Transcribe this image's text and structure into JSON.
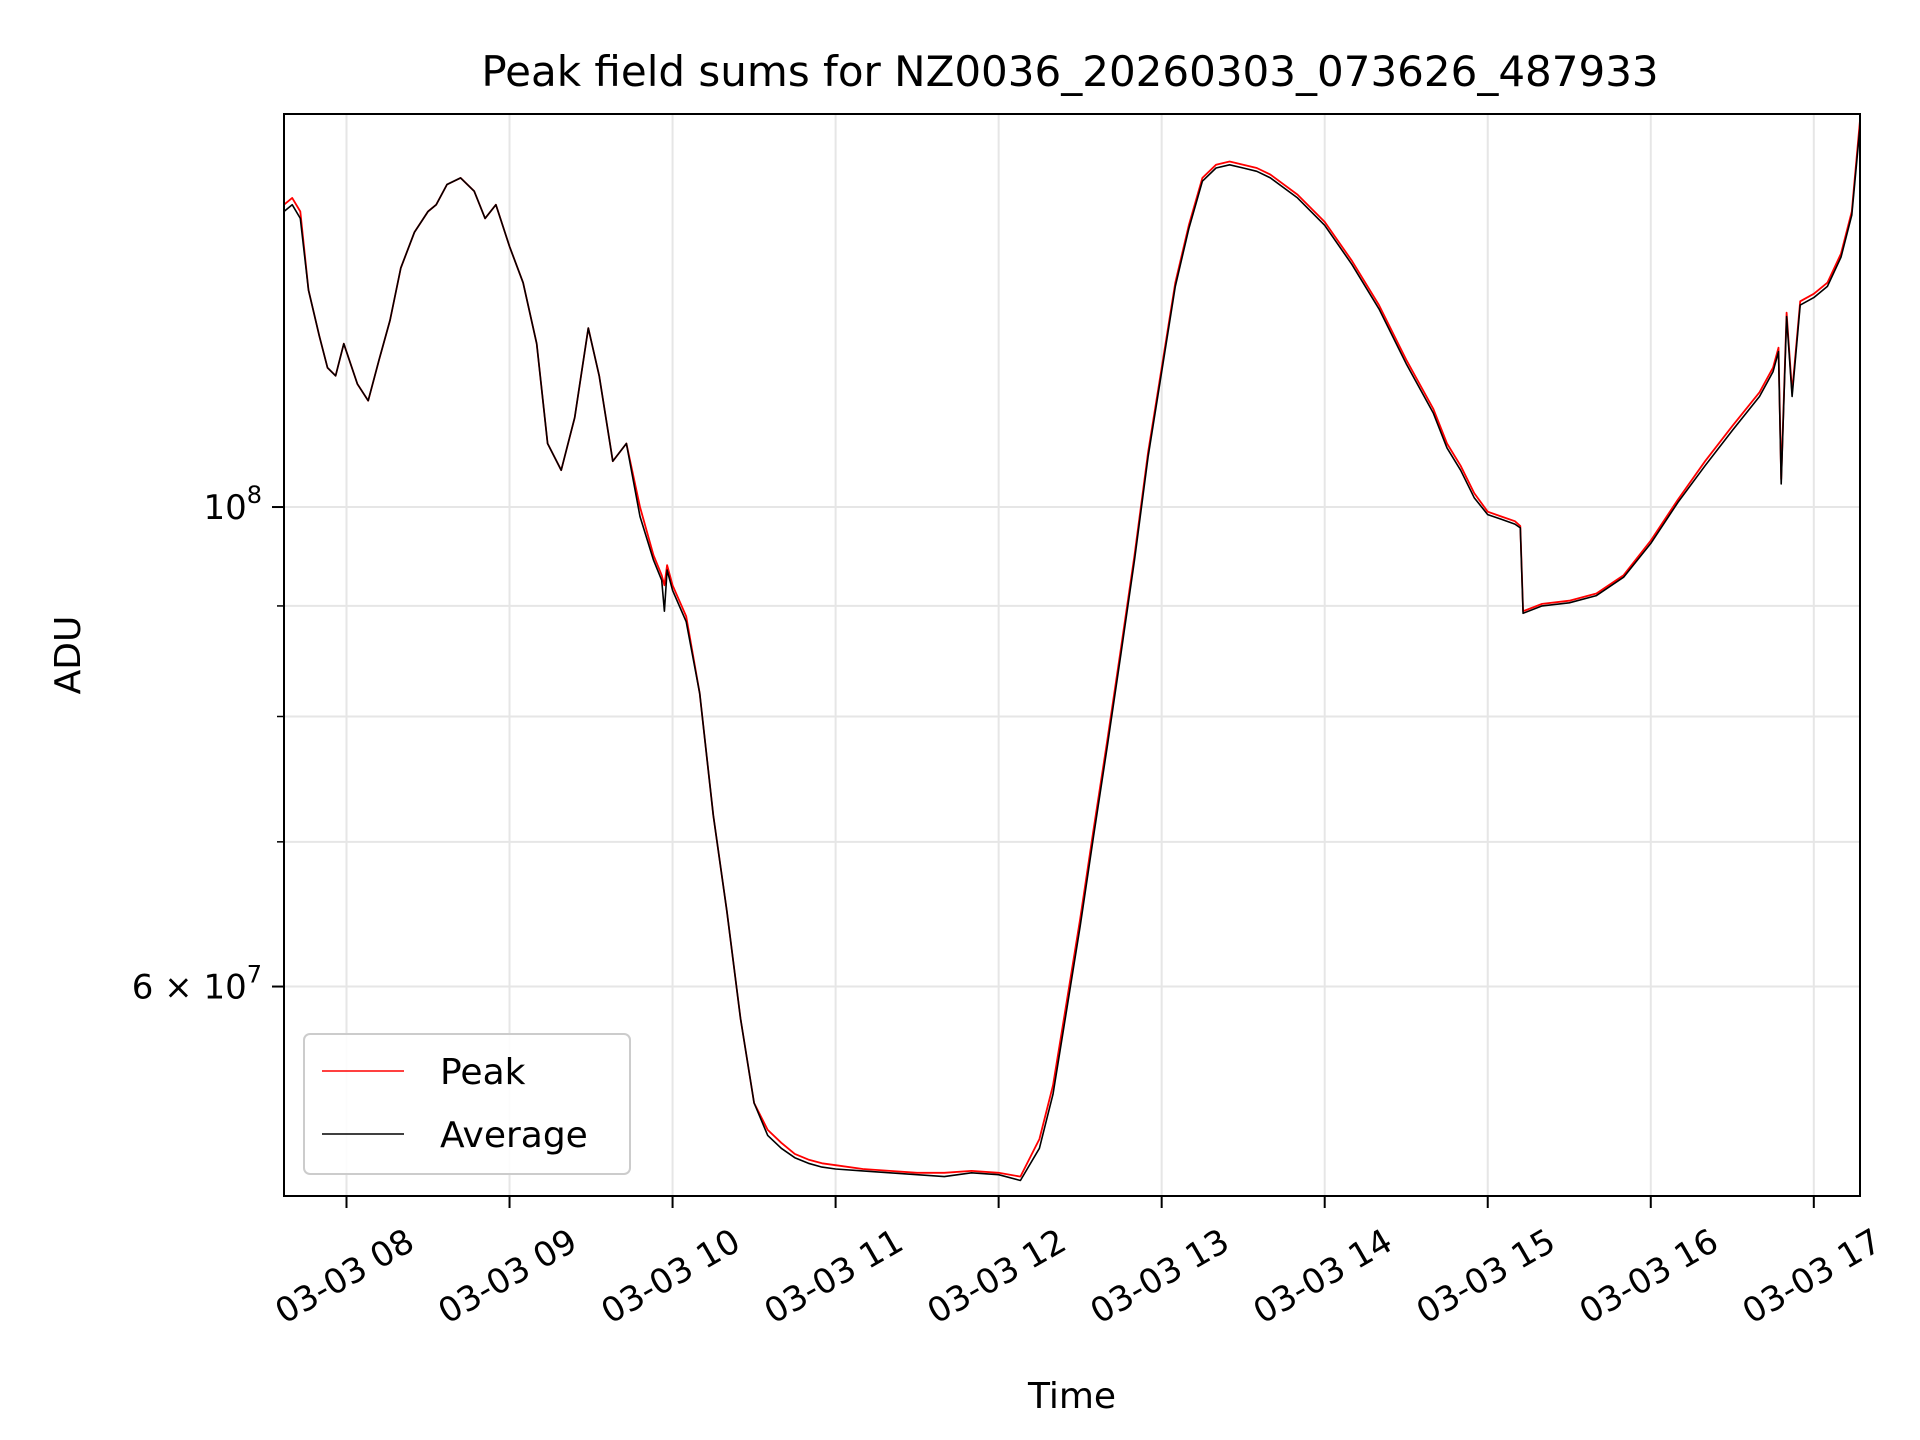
{
  "chart_data": {
    "type": "line",
    "title": "Peak field sums for NZ0036_20260303_073626_487933",
    "xlabel": "Time",
    "ylabel": "ADU",
    "y_scale": "log",
    "xlim": [
      "2026-03-03 07:37",
      "2026-03-03 17:17"
    ],
    "ylim": [
      48000000,
      152000000
    ],
    "x_ticks": [
      "03-03 08",
      "03-03 09",
      "03-03 10",
      "03-03 11",
      "03-03 12",
      "03-03 13",
      "03-03 14",
      "03-03 15",
      "03-03 16",
      "03-03 17"
    ],
    "x_tick_times": [
      "2026-03-03 08:00",
      "2026-03-03 09:00",
      "2026-03-03 10:00",
      "2026-03-03 11:00",
      "2026-03-03 12:00",
      "2026-03-03 13:00",
      "2026-03-03 14:00",
      "2026-03-03 15:00",
      "2026-03-03 16:00",
      "2026-03-03 17:00"
    ],
    "y_major_ticks": [
      {
        "value": 60000000,
        "label_base": "6 × 10",
        "label_exp": "7"
      },
      {
        "value": 100000000,
        "label_base": "10",
        "label_exp": "8"
      }
    ],
    "y_minor_ticks": [
      70000000,
      80000000,
      90000000
    ],
    "grid": true,
    "legend_position": "lower-left",
    "series": [
      {
        "name": "Peak",
        "color": "#ff0000",
        "x": [
          "2026-03-03 07:37",
          "2026-03-03 07:40",
          "2026-03-03 07:43",
          "2026-03-03 07:46",
          "2026-03-03 07:50",
          "2026-03-03 07:53",
          "2026-03-03 07:56",
          "2026-03-03 07:59",
          "2026-03-03 08:04",
          "2026-03-03 08:08",
          "2026-03-03 08:12",
          "2026-03-03 08:16",
          "2026-03-03 08:20",
          "2026-03-03 08:25",
          "2026-03-03 08:30",
          "2026-03-03 08:33",
          "2026-03-03 08:37",
          "2026-03-03 08:42",
          "2026-03-03 08:47",
          "2026-03-03 08:51",
          "2026-03-03 08:55",
          "2026-03-03 09:00",
          "2026-03-03 09:05",
          "2026-03-03 09:10",
          "2026-03-03 09:14",
          "2026-03-03 09:19",
          "2026-03-03 09:24",
          "2026-03-03 09:29",
          "2026-03-03 09:33",
          "2026-03-03 09:38",
          "2026-03-03 09:43",
          "2026-03-03 09:48",
          "2026-03-03 09:53",
          "2026-03-03 09:56",
          "2026-03-03 09:57",
          "2026-03-03 09:58",
          "2026-03-03 10:00",
          "2026-03-03 10:05",
          "2026-03-03 10:10",
          "2026-03-03 10:15",
          "2026-03-03 10:20",
          "2026-03-03 10:25",
          "2026-03-03 10:30",
          "2026-03-03 10:35",
          "2026-03-03 10:40",
          "2026-03-03 10:45",
          "2026-03-03 10:50",
          "2026-03-03 10:55",
          "2026-03-03 11:00",
          "2026-03-03 11:10",
          "2026-03-03 11:20",
          "2026-03-03 11:30",
          "2026-03-03 11:40",
          "2026-03-03 11:50",
          "2026-03-03 12:00",
          "2026-03-03 12:08",
          "2026-03-03 12:15",
          "2026-03-03 12:20",
          "2026-03-03 12:25",
          "2026-03-03 12:30",
          "2026-03-03 12:35",
          "2026-03-03 12:40",
          "2026-03-03 12:45",
          "2026-03-03 12:50",
          "2026-03-03 12:55",
          "2026-03-03 13:00",
          "2026-03-03 13:05",
          "2026-03-03 13:10",
          "2026-03-03 13:15",
          "2026-03-03 13:20",
          "2026-03-03 13:25",
          "2026-03-03 13:30",
          "2026-03-03 13:35",
          "2026-03-03 13:40",
          "2026-03-03 13:50",
          "2026-03-03 14:00",
          "2026-03-03 14:10",
          "2026-03-03 14:20",
          "2026-03-03 14:30",
          "2026-03-03 14:40",
          "2026-03-03 14:45",
          "2026-03-03 14:50",
          "2026-03-03 14:55",
          "2026-03-03 15:00",
          "2026-03-03 15:05",
          "2026-03-03 15:10",
          "2026-03-03 15:12",
          "2026-03-03 15:13",
          "2026-03-03 15:20",
          "2026-03-03 15:30",
          "2026-03-03 15:40",
          "2026-03-03 15:50",
          "2026-03-03 16:00",
          "2026-03-03 16:10",
          "2026-03-03 16:20",
          "2026-03-03 16:30",
          "2026-03-03 16:40",
          "2026-03-03 16:45",
          "2026-03-03 16:47",
          "2026-03-03 16:48",
          "2026-03-03 16:50",
          "2026-03-03 16:52",
          "2026-03-03 16:55",
          "2026-03-03 17:00",
          "2026-03-03 17:05",
          "2026-03-03 17:10",
          "2026-03-03 17:14",
          "2026-03-03 17:17"
        ],
        "y": [
          138000000,
          139000000,
          137000000,
          126000000,
          120000000,
          116000000,
          115000000,
          119000000,
          114000000,
          112000000,
          117000000,
          122000000,
          129000000,
          134000000,
          137000000,
          138000000,
          141000000,
          142000000,
          140000000,
          136000000,
          138000000,
          132000000,
          127000000,
          119000000,
          107000000,
          104000000,
          110000000,
          121000000,
          115000000,
          105000000,
          107000000,
          100000000,
          95000000,
          93000000,
          92000000,
          94000000,
          92000000,
          89000000,
          82000000,
          72000000,
          65000000,
          58000000,
          53000000,
          51500000,
          50800000,
          50200000,
          49900000,
          49700000,
          49600000,
          49400000,
          49300000,
          49200000,
          49200000,
          49300000,
          49200000,
          49000000,
          51000000,
          54000000,
          59000000,
          64500000,
          71000000,
          78000000,
          86000000,
          95000000,
          106000000,
          116000000,
          127000000,
          135000000,
          142000000,
          144000000,
          144500000,
          144000000,
          143500000,
          142500000,
          139500000,
          135500000,
          130000000,
          124000000,
          117000000,
          111000000,
          107000000,
          104500000,
          101500000,
          99500000,
          99000000,
          98500000,
          98000000,
          89500000,
          90200000,
          90500000,
          91200000,
          93000000,
          96500000,
          100800000,
          105000000,
          109000000,
          113000000,
          116000000,
          118500000,
          103000000,
          123000000,
          113000000,
          124500000,
          125500000,
          127000000,
          131000000,
          137000000,
          151000000
        ]
      },
      {
        "name": "Average",
        "color": "#000000",
        "x": [
          "2026-03-03 07:37",
          "2026-03-03 07:40",
          "2026-03-03 07:43",
          "2026-03-03 07:46",
          "2026-03-03 07:50",
          "2026-03-03 07:53",
          "2026-03-03 07:56",
          "2026-03-03 07:59",
          "2026-03-03 08:04",
          "2026-03-03 08:08",
          "2026-03-03 08:12",
          "2026-03-03 08:16",
          "2026-03-03 08:20",
          "2026-03-03 08:25",
          "2026-03-03 08:30",
          "2026-03-03 08:33",
          "2026-03-03 08:37",
          "2026-03-03 08:42",
          "2026-03-03 08:47",
          "2026-03-03 08:51",
          "2026-03-03 08:55",
          "2026-03-03 09:00",
          "2026-03-03 09:05",
          "2026-03-03 09:10",
          "2026-03-03 09:14",
          "2026-03-03 09:19",
          "2026-03-03 09:24",
          "2026-03-03 09:29",
          "2026-03-03 09:33",
          "2026-03-03 09:38",
          "2026-03-03 09:43",
          "2026-03-03 09:48",
          "2026-03-03 09:53",
          "2026-03-03 09:56",
          "2026-03-03 09:57",
          "2026-03-03 09:58",
          "2026-03-03 10:00",
          "2026-03-03 10:05",
          "2026-03-03 10:10",
          "2026-03-03 10:15",
          "2026-03-03 10:20",
          "2026-03-03 10:25",
          "2026-03-03 10:30",
          "2026-03-03 10:35",
          "2026-03-03 10:40",
          "2026-03-03 10:45",
          "2026-03-03 10:50",
          "2026-03-03 10:55",
          "2026-03-03 11:00",
          "2026-03-03 11:10",
          "2026-03-03 11:20",
          "2026-03-03 11:30",
          "2026-03-03 11:40",
          "2026-03-03 11:50",
          "2026-03-03 12:00",
          "2026-03-03 12:08",
          "2026-03-03 12:15",
          "2026-03-03 12:20",
          "2026-03-03 12:25",
          "2026-03-03 12:30",
          "2026-03-03 12:35",
          "2026-03-03 12:40",
          "2026-03-03 12:45",
          "2026-03-03 12:50",
          "2026-03-03 12:55",
          "2026-03-03 13:00",
          "2026-03-03 13:05",
          "2026-03-03 13:10",
          "2026-03-03 13:15",
          "2026-03-03 13:20",
          "2026-03-03 13:25",
          "2026-03-03 13:30",
          "2026-03-03 13:35",
          "2026-03-03 13:40",
          "2026-03-03 13:50",
          "2026-03-03 14:00",
          "2026-03-03 14:10",
          "2026-03-03 14:20",
          "2026-03-03 14:30",
          "2026-03-03 14:40",
          "2026-03-03 14:45",
          "2026-03-03 14:50",
          "2026-03-03 14:55",
          "2026-03-03 15:00",
          "2026-03-03 15:05",
          "2026-03-03 15:10",
          "2026-03-03 15:12",
          "2026-03-03 15:13",
          "2026-03-03 15:20",
          "2026-03-03 15:30",
          "2026-03-03 15:40",
          "2026-03-03 15:50",
          "2026-03-03 16:00",
          "2026-03-03 16:10",
          "2026-03-03 16:20",
          "2026-03-03 16:30",
          "2026-03-03 16:40",
          "2026-03-03 16:45",
          "2026-03-03 16:47",
          "2026-03-03 16:48",
          "2026-03-03 16:50",
          "2026-03-03 16:52",
          "2026-03-03 16:55",
          "2026-03-03 17:00",
          "2026-03-03 17:05",
          "2026-03-03 17:10",
          "2026-03-03 17:14",
          "2026-03-03 17:17"
        ],
        "y": [
          137000000,
          138000000,
          136000000,
          126000000,
          120000000,
          116000000,
          115000000,
          119000000,
          114000000,
          112000000,
          117000000,
          122000000,
          129000000,
          134000000,
          137000000,
          138000000,
          141000000,
          142000000,
          140000000,
          136000000,
          138000000,
          132000000,
          127000000,
          119000000,
          107000000,
          104000000,
          110000000,
          121000000,
          115000000,
          105000000,
          107000000,
          99000000,
          94500000,
          92500000,
          89500000,
          93500000,
          91500000,
          88500000,
          82000000,
          72000000,
          65000000,
          58000000,
          53000000,
          51200000,
          50500000,
          50000000,
          49700000,
          49500000,
          49400000,
          49300000,
          49200000,
          49100000,
          49000000,
          49200000,
          49100000,
          48800000,
          50500000,
          53500000,
          58500000,
          64000000,
          70500000,
          77500000,
          85500000,
          94500000,
          105500000,
          115500000,
          126500000,
          134500000,
          141500000,
          143500000,
          144000000,
          143500000,
          143000000,
          142000000,
          139000000,
          135000000,
          129500000,
          123500000,
          116500000,
          110500000,
          106500000,
          104000000,
          101000000,
          99200000,
          98700000,
          98200000,
          97800000,
          89300000,
          90000000,
          90300000,
          91000000,
          92800000,
          96200000,
          100500000,
          104500000,
          108500000,
          112500000,
          115500000,
          118000000,
          102500000,
          122500000,
          112500000,
          124000000,
          125000000,
          126500000,
          130500000,
          136500000,
          150000000
        ]
      }
    ]
  }
}
